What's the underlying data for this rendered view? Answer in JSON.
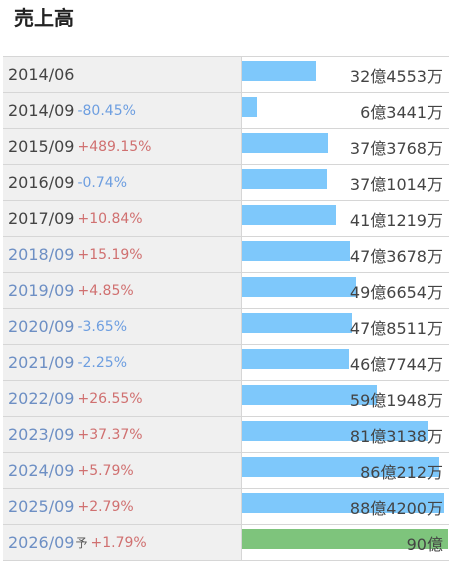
{
  "header": {
    "title": "売上高"
  },
  "rows": [
    {
      "year": "2014/06",
      "change": "",
      "direction": "none",
      "value": "32億4553万",
      "amount": 32.4553,
      "fy": false,
      "forecast": false
    },
    {
      "year": "2014/09",
      "change": "-80.45%",
      "direction": "down",
      "value": "6億3441万",
      "amount": 6.3441,
      "fy": false,
      "forecast": false
    },
    {
      "year": "2015/09",
      "change": "+489.15%",
      "direction": "up",
      "value": "37億3768万",
      "amount": 37.3768,
      "fy": false,
      "forecast": false
    },
    {
      "year": "2016/09",
      "change": "-0.74%",
      "direction": "down",
      "value": "37億1014万",
      "amount": 37.1014,
      "fy": false,
      "forecast": false
    },
    {
      "year": "2017/09",
      "change": "+10.84%",
      "direction": "up",
      "value": "41億1219万",
      "amount": 41.1219,
      "fy": false,
      "forecast": false
    },
    {
      "year": "2018/09",
      "change": "+15.19%",
      "direction": "up",
      "value": "47億3678万",
      "amount": 47.3678,
      "fy": true,
      "forecast": false
    },
    {
      "year": "2019/09",
      "change": "+4.85%",
      "direction": "up",
      "value": "49億6654万",
      "amount": 49.6654,
      "fy": true,
      "forecast": false
    },
    {
      "year": "2020/09",
      "change": "-3.65%",
      "direction": "down",
      "value": "47億8511万",
      "amount": 47.8511,
      "fy": true,
      "forecast": false
    },
    {
      "year": "2021/09",
      "change": "-2.25%",
      "direction": "down",
      "value": "46億7744万",
      "amount": 46.7744,
      "fy": true,
      "forecast": false
    },
    {
      "year": "2022/09",
      "change": "+26.55%",
      "direction": "up",
      "value": "59億1948万",
      "amount": 59.1948,
      "fy": true,
      "forecast": false
    },
    {
      "year": "2023/09",
      "change": "+37.37%",
      "direction": "up",
      "value": "81億3138万",
      "amount": 81.3138,
      "fy": true,
      "forecast": false
    },
    {
      "year": "2024/09",
      "change": "+5.79%",
      "direction": "up",
      "value": "86億212万",
      "amount": 86.0212,
      "fy": true,
      "forecast": false
    },
    {
      "year": "2025/09",
      "change": "+2.79%",
      "direction": "up",
      "value": "88億4200万",
      "amount": 88.42,
      "fy": true,
      "forecast": false
    },
    {
      "year": "2026/09",
      "forecast_mark": "予",
      "change": "+1.79%",
      "direction": "up",
      "value": "90億",
      "amount": 90,
      "fy": true,
      "forecast": true
    }
  ],
  "colors": {
    "bar": "#7ec8fb",
    "forecast_bar": "#7ec47c",
    "up": "#d07070",
    "down": "#6d9ee0"
  }
}
